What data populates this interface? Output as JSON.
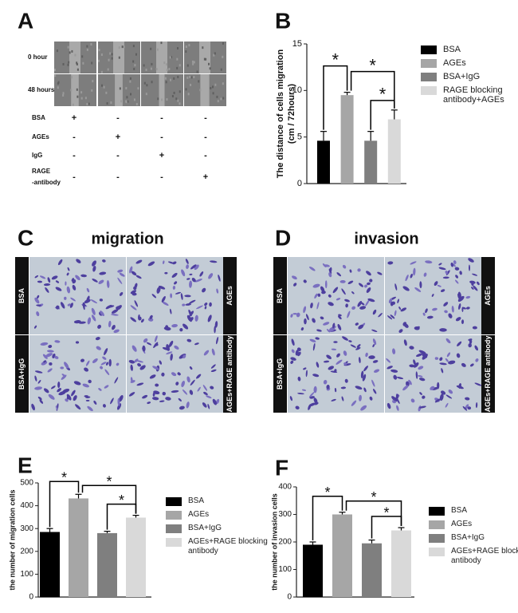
{
  "panel_labels": [
    "A",
    "B",
    "C",
    "D",
    "E",
    "F"
  ],
  "panel_a": {
    "time_labels": [
      "0 hour",
      "48 hours"
    ],
    "treatments": [
      {
        "label": [
          "BSA"
        ],
        "marks": [
          "+",
          "-",
          "-",
          "-"
        ]
      },
      {
        "label": [
          "AGEs"
        ],
        "marks": [
          "-",
          "+",
          "-",
          "-"
        ]
      },
      {
        "label": [
          "IgG"
        ],
        "marks": [
          "-",
          "-",
          "+",
          "-"
        ]
      },
      {
        "label": [
          "RAGE",
          "-antibody"
        ],
        "marks": [
          "-",
          "-",
          "-",
          "+"
        ]
      }
    ]
  },
  "panel_c": {
    "title": "migration",
    "labels": [
      "BSA",
      "AGEs",
      "BSA+IgG",
      "AGEs+RAGE antibody"
    ]
  },
  "panel_d": {
    "title": "invasion",
    "labels": [
      "BSA",
      "AGEs",
      "BSA+IgG",
      "AGEs+RAGE antibody"
    ]
  },
  "chart_data": [
    {
      "type": "bar",
      "ylabel": [
        "The distance of cells migration",
        "(cm / 72hours)"
      ],
      "ylim": [
        0,
        15
      ],
      "yticks": [
        0,
        5,
        10,
        15
      ],
      "series": [
        {
          "name": "BSA",
          "color": "#000000",
          "values": [
            4.6
          ],
          "errors": [
            1.0
          ]
        },
        {
          "name": "AGEs",
          "color": "#a6a6a6",
          "values": [
            9.5
          ],
          "errors": [
            0.3
          ]
        },
        {
          "name": "BSA+IgG",
          "color": "#7f7f7f",
          "values": [
            4.6
          ],
          "errors": [
            1.0
          ]
        },
        {
          "name": "RAGE blocking antibody+AGEs",
          "color": "#d9d9d9",
          "values": [
            6.9
          ],
          "errors": [
            1.0
          ]
        }
      ],
      "annotations": [
        "*",
        "*",
        "*"
      ]
    },
    {
      "type": "bar",
      "ylabel": [
        "the number of migration cells"
      ],
      "ylim": [
        0,
        500
      ],
      "yticks": [
        0,
        100,
        200,
        300,
        400,
        500
      ],
      "series": [
        {
          "name": "BSA",
          "color": "#000000",
          "values": [
            285
          ],
          "errors": [
            15
          ]
        },
        {
          "name": "AGEs",
          "color": "#a6a6a6",
          "values": [
            432
          ],
          "errors": [
            18
          ]
        },
        {
          "name": "BSA+IgG",
          "color": "#7f7f7f",
          "values": [
            280
          ],
          "errors": [
            8
          ]
        },
        {
          "name": "AGEs+RAGE blocking antibody",
          "color": "#d9d9d9",
          "values": [
            348
          ],
          "errors": [
            10
          ]
        }
      ],
      "annotations": [
        "*",
        "*",
        "*"
      ]
    },
    {
      "type": "bar",
      "ylabel": [
        "the number of invasion cells"
      ],
      "ylim": [
        0,
        400
      ],
      "yticks": [
        0,
        100,
        200,
        300,
        400
      ],
      "series": [
        {
          "name": "BSA",
          "color": "#000000",
          "values": [
            190
          ],
          "errors": [
            10
          ]
        },
        {
          "name": "AGEs",
          "color": "#a6a6a6",
          "values": [
            300
          ],
          "errors": [
            8
          ]
        },
        {
          "name": "BSA+IgG",
          "color": "#7f7f7f",
          "values": [
            195
          ],
          "errors": [
            12
          ]
        },
        {
          "name": "AGEs+RAGE blocking antibody",
          "color": "#d9d9d9",
          "values": [
            242
          ],
          "errors": [
            10
          ]
        }
      ],
      "annotations": [
        "*",
        "*",
        "*"
      ]
    }
  ]
}
